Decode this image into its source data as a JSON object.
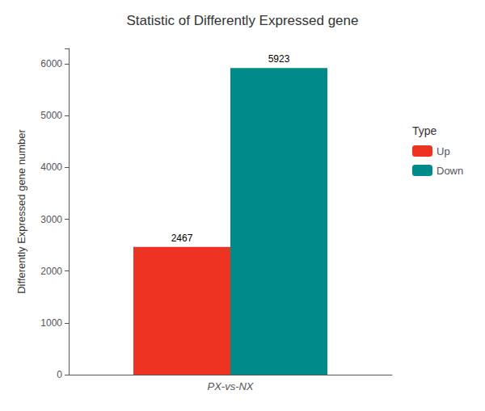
{
  "chart_data": {
    "type": "bar",
    "title": "Statistic of Differently Expressed gene",
    "ylabel": "Differently Expressed gene number",
    "categories": [
      "PX-vs-NX"
    ],
    "series": [
      {
        "name": "Up",
        "color": "#EE3322",
        "values": [
          2467
        ]
      },
      {
        "name": "Down",
        "color": "#008B8B",
        "values": [
          5923
        ]
      }
    ],
    "ylim": [
      0,
      6300
    ],
    "yticks": [
      0,
      1000,
      2000,
      3000,
      4000,
      5000,
      6000
    ],
    "grid": false,
    "legend": "right",
    "legend_title": "Type",
    "data_labels": true
  }
}
